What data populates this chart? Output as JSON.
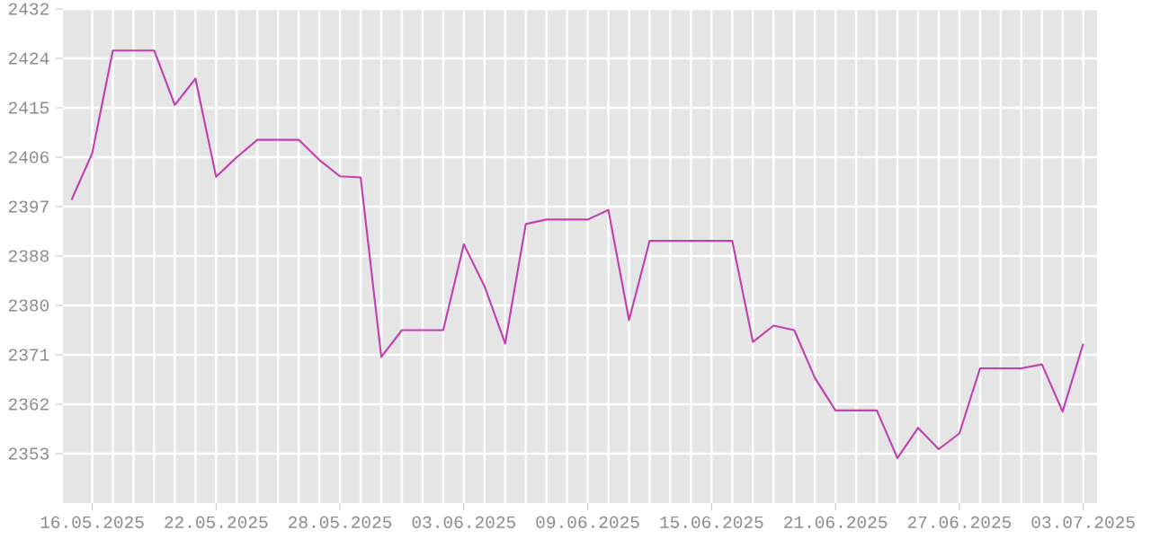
{
  "chart_data": {
    "type": "line",
    "color": "#c040b0",
    "line_style": "solid",
    "grid": true,
    "x": [
      "2025-05-15",
      "2025-05-16",
      "2025-05-17",
      "2025-05-18",
      "2025-05-19",
      "2025-05-20",
      "2025-05-21",
      "2025-05-22",
      "2025-05-23",
      "2025-05-24",
      "2025-05-25",
      "2025-05-26",
      "2025-05-27",
      "2025-05-28",
      "2025-05-29",
      "2025-05-30",
      "2025-05-31",
      "2025-06-01",
      "2025-06-02",
      "2025-06-03",
      "2025-06-04",
      "2025-06-05",
      "2025-06-06",
      "2025-06-07",
      "2025-06-08",
      "2025-06-09",
      "2025-06-10",
      "2025-06-11",
      "2025-06-12",
      "2025-06-13",
      "2025-06-14",
      "2025-06-15",
      "2025-06-16",
      "2025-06-17",
      "2025-06-18",
      "2025-06-19",
      "2025-06-20",
      "2025-06-21",
      "2025-06-22",
      "2025-06-23",
      "2025-06-24",
      "2025-06-25",
      "2025-06-26",
      "2025-06-27",
      "2025-06-28",
      "2025-06-29",
      "2025-06-30",
      "2025-07-01",
      "2025-07-02",
      "2025-07-03"
    ],
    "values": [
      2398.4,
      2406.7,
      2425.0,
      2425.0,
      2425.0,
      2415.3,
      2420.0,
      2402.5,
      2406.0,
      2409.1,
      2409.1,
      2409.1,
      2405.5,
      2402.6,
      2402.4,
      2370.4,
      2375.2,
      2375.2,
      2375.2,
      2390.5,
      2383.0,
      2372.8,
      2394.1,
      2394.9,
      2394.9,
      2394.9,
      2396.6,
      2377.0,
      2391.1,
      2391.1,
      2391.1,
      2391.1,
      2391.1,
      2373.1,
      2376.0,
      2375.2,
      2366.7,
      2360.9,
      2360.9,
      2360.9,
      2352.4,
      2357.8,
      2354.0,
      2356.8,
      2368.4,
      2368.4,
      2368.4,
      2369.1,
      2360.7,
      2372.8
    ],
    "xlim": [
      "2025-05-14T14:00",
      "2025-07-03T16:00"
    ],
    "xticks": [
      {
        "value": "2025-05-16",
        "label": "16.05.2025"
      },
      {
        "value": "2025-05-22",
        "label": "22.05.2025"
      },
      {
        "value": "2025-05-28",
        "label": "28.05.2025"
      },
      {
        "value": "2025-06-03",
        "label": "03.06.2025"
      },
      {
        "value": "2025-06-09",
        "label": "09.06.2025"
      },
      {
        "value": "2025-06-15",
        "label": "15.06.2025"
      },
      {
        "value": "2025-06-21",
        "label": "21.06.2025"
      },
      {
        "value": "2025-06-27",
        "label": "27.06.2025"
      },
      {
        "value": "2025-07-03",
        "label": "03.07.2025"
      }
    ],
    "ylim": [
      2344.4,
      2432.4
    ],
    "yticks": [
      {
        "value": 2432.4,
        "label": "2432"
      },
      {
        "value": 2423.6,
        "label": "2424"
      },
      {
        "value": 2414.8,
        "label": "2415"
      },
      {
        "value": 2406.0,
        "label": "2406"
      },
      {
        "value": 2397.2,
        "label": "2397"
      },
      {
        "value": 2388.4,
        "label": "2388"
      },
      {
        "value": 2379.6,
        "label": "2380"
      },
      {
        "value": 2370.8,
        "label": "2371"
      },
      {
        "value": 2362.0,
        "label": "2362"
      },
      {
        "value": 2353.2,
        "label": "2353"
      }
    ]
  }
}
